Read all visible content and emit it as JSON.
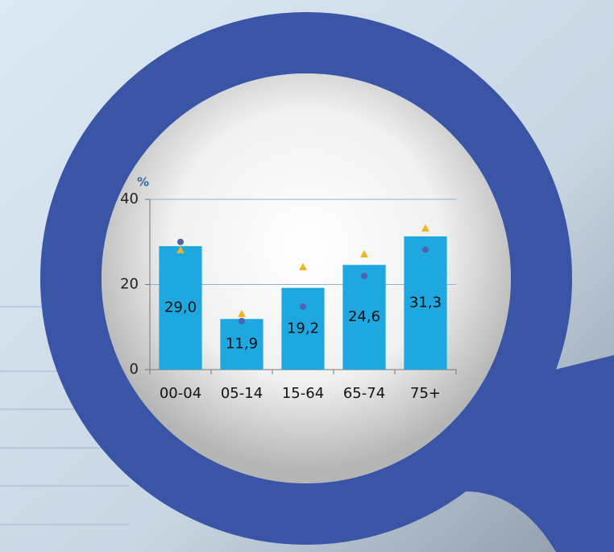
{
  "chart_data": {
    "type": "bar",
    "y_axis_label": "%",
    "categories": [
      "00-04",
      "05-14",
      "15-64",
      "65-74",
      "75+"
    ],
    "series": [
      {
        "type": "bar",
        "color": "#1fa8e0",
        "values": [
          29.0,
          11.9,
          19.2,
          24.6,
          31.3
        ],
        "value_labels": [
          "29,0",
          "11,9",
          "19,2",
          "24,6",
          "31,3"
        ]
      },
      {
        "type": "scatter",
        "marker": "triangle",
        "color": "#f0b323",
        "values": [
          28.1,
          13.1,
          24.1,
          27.1,
          33.2
        ]
      },
      {
        "type": "scatter",
        "marker": "circle",
        "color": "#4d62ad",
        "values": [
          30.0,
          11.4,
          14.8,
          22.0,
          28.2
        ]
      }
    ],
    "ylim": [
      0,
      40
    ],
    "yticks": [
      0,
      20,
      40
    ],
    "grid": true
  }
}
